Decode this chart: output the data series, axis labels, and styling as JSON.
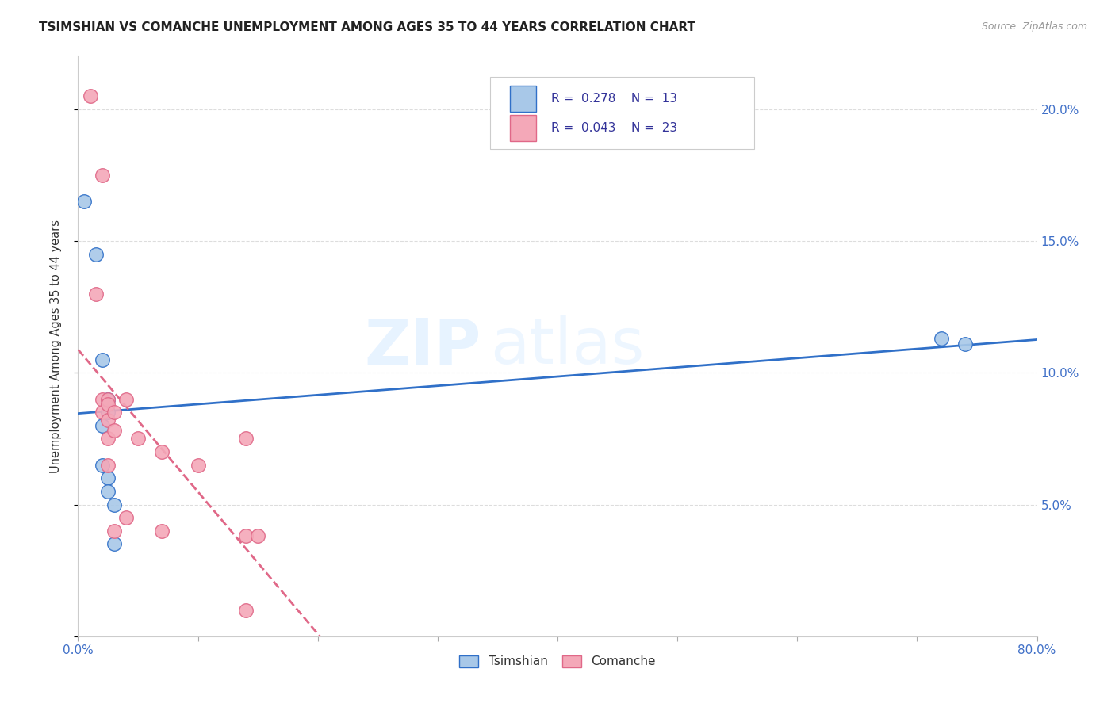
{
  "title": "TSIMSHIAN VS COMANCHE UNEMPLOYMENT AMONG AGES 35 TO 44 YEARS CORRELATION CHART",
  "source": "Source: ZipAtlas.com",
  "ylabel": "Unemployment Among Ages 35 to 44 years",
  "xlim": [
    0.0,
    0.8
  ],
  "ylim": [
    0.0,
    0.22
  ],
  "tsimshian_R": 0.278,
  "tsimshian_N": 13,
  "comanche_R": 0.043,
  "comanche_N": 23,
  "tsimshian_color": "#a8c8e8",
  "comanche_color": "#f4a8b8",
  "tsimshian_line_color": "#3070c8",
  "comanche_line_color": "#e06888",
  "tsimshian_x": [
    0.005,
    0.015,
    0.02,
    0.02,
    0.02,
    0.025,
    0.025,
    0.025,
    0.025,
    0.03,
    0.03,
    0.72,
    0.74
  ],
  "tsimshian_y": [
    0.165,
    0.145,
    0.105,
    0.08,
    0.065,
    0.09,
    0.085,
    0.06,
    0.055,
    0.05,
    0.035,
    0.113,
    0.111
  ],
  "comanche_x": [
    0.01,
    0.015,
    0.02,
    0.02,
    0.02,
    0.025,
    0.025,
    0.025,
    0.025,
    0.025,
    0.03,
    0.03,
    0.03,
    0.04,
    0.04,
    0.05,
    0.07,
    0.07,
    0.1,
    0.14,
    0.14,
    0.14,
    0.15
  ],
  "comanche_y": [
    0.205,
    0.13,
    0.175,
    0.09,
    0.085,
    0.09,
    0.088,
    0.082,
    0.075,
    0.065,
    0.085,
    0.078,
    0.04,
    0.09,
    0.045,
    0.075,
    0.07,
    0.04,
    0.065,
    0.038,
    0.01,
    0.075,
    0.038
  ]
}
